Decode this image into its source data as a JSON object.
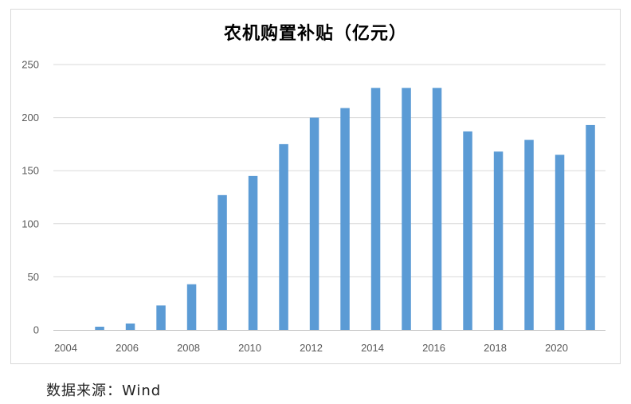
{
  "chart_data": {
    "type": "bar",
    "title": "农机购置补贴（亿元）",
    "x": [
      2004,
      2005,
      2006,
      2007,
      2008,
      2009,
      2010,
      2011,
      2012,
      2013,
      2014,
      2015,
      2016,
      2017,
      2018,
      2019,
      2020,
      2021
    ],
    "values": [
      0,
      3,
      6,
      23,
      43,
      127,
      145,
      175,
      200,
      209,
      228,
      228,
      228,
      187,
      168,
      179,
      165,
      193
    ],
    "xtick_labels": [
      "2004",
      "2006",
      "2008",
      "2010",
      "2012",
      "2014",
      "2016",
      "2018",
      "2020"
    ],
    "ytick_labels": [
      "0",
      "50",
      "100",
      "150",
      "200",
      "250"
    ],
    "ylim": [
      0,
      250
    ],
    "grid": true,
    "legend": "none",
    "bar_color": "#5b9bd5"
  },
  "source": "数据来源：Wind"
}
